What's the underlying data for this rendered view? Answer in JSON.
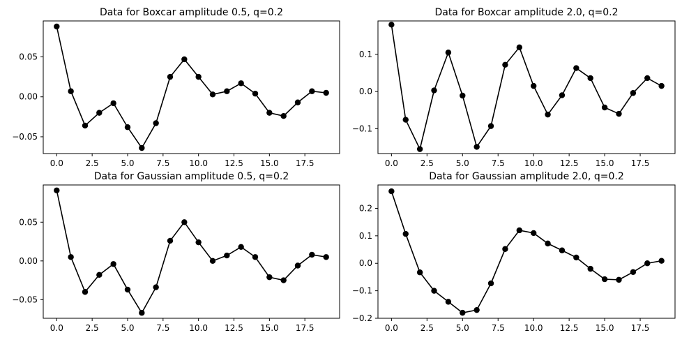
{
  "style": {
    "line_color": "#000000",
    "marker_color": "#000000",
    "marker": "circle",
    "background": "#ffffff"
  },
  "chart_data": [
    {
      "type": "line",
      "title": "Data for Boxcar amplitude 0.5, q=0.2",
      "xlabel": "",
      "ylabel": "",
      "xlim": [
        -0.95,
        19.95
      ],
      "ylim": [
        -0.071,
        0.095
      ],
      "xticks": [
        0,
        2.5,
        5,
        7.5,
        10,
        12.5,
        15,
        17.5
      ],
      "xtick_labels": [
        "0.0",
        "2.5",
        "5.0",
        "7.5",
        "10.0",
        "12.5",
        "15.0",
        "17.5"
      ],
      "yticks": [
        -0.05,
        0,
        0.05
      ],
      "ytick_labels": [
        "−0.05",
        "0.00",
        "0.05"
      ],
      "grid": false,
      "series": [
        {
          "x": [
            0,
            1,
            2,
            3,
            4,
            5,
            6,
            7,
            8,
            9,
            10,
            11,
            12,
            13,
            14,
            15,
            16,
            17,
            18,
            19
          ],
          "y": [
            0.088,
            0.007,
            -0.036,
            -0.02,
            -0.008,
            -0.038,
            -0.064,
            -0.033,
            0.025,
            0.047,
            0.025,
            0.003,
            0.007,
            0.017,
            0.004,
            -0.02,
            -0.024,
            -0.007,
            0.007,
            0.005
          ]
        }
      ]
    },
    {
      "type": "line",
      "title": "Data for Boxcar amplitude 2.0, q=0.2",
      "xlabel": "",
      "ylabel": "",
      "xlim": [
        -0.95,
        19.95
      ],
      "ylim": [
        -0.167,
        0.19
      ],
      "xticks": [
        0,
        2.5,
        5,
        7.5,
        10,
        12.5,
        15,
        17.5
      ],
      "xtick_labels": [
        "0.0",
        "2.5",
        "5.0",
        "7.5",
        "10.0",
        "12.5",
        "15.0",
        "17.5"
      ],
      "yticks": [
        -0.1,
        0,
        0.1
      ],
      "ytick_labels": [
        "−0.1",
        "0.0",
        "0.1"
      ],
      "grid": false,
      "series": [
        {
          "x": [
            0,
            1,
            2,
            3,
            4,
            5,
            6,
            7,
            8,
            9,
            10,
            11,
            12,
            13,
            14,
            15,
            16,
            17,
            18,
            19
          ],
          "y": [
            0.18,
            -0.076,
            -0.155,
            0.003,
            0.105,
            -0.011,
            -0.149,
            -0.093,
            0.072,
            0.119,
            0.015,
            -0.062,
            -0.01,
            0.063,
            0.036,
            -0.043,
            -0.06,
            -0.004,
            0.036,
            0.015
          ]
        }
      ]
    },
    {
      "type": "line",
      "title": "Data for Gaussian amplitude 0.5, q=0.2",
      "xlabel": "",
      "ylabel": "",
      "xlim": [
        -0.95,
        19.95
      ],
      "ylim": [
        -0.074,
        0.098
      ],
      "xticks": [
        0,
        2.5,
        5,
        7.5,
        10,
        12.5,
        15,
        17.5
      ],
      "xtick_labels": [
        "0.0",
        "2.5",
        "5.0",
        "7.5",
        "10.0",
        "12.5",
        "15.0",
        "17.5"
      ],
      "yticks": [
        -0.05,
        0,
        0.05
      ],
      "ytick_labels": [
        "−0.05",
        "0.00",
        "0.05"
      ],
      "grid": false,
      "series": [
        {
          "x": [
            0,
            1,
            2,
            3,
            4,
            5,
            6,
            7,
            8,
            9,
            10,
            11,
            12,
            13,
            14,
            15,
            16,
            17,
            18,
            19
          ],
          "y": [
            0.091,
            0.005,
            -0.04,
            -0.018,
            -0.004,
            -0.037,
            -0.067,
            -0.034,
            0.026,
            0.05,
            0.024,
            0.0,
            0.007,
            0.018,
            0.005,
            -0.021,
            -0.025,
            -0.006,
            0.008,
            0.005
          ]
        }
      ]
    },
    {
      "type": "line",
      "title": "Data for Gaussian amplitude 2.0, q=0.2",
      "xlabel": "",
      "ylabel": "",
      "xlim": [
        -0.95,
        19.95
      ],
      "ylim": [
        -0.2,
        0.285
      ],
      "xticks": [
        0,
        2.5,
        5,
        7.5,
        10,
        12.5,
        15,
        17.5
      ],
      "xtick_labels": [
        "0.0",
        "2.5",
        "5.0",
        "7.5",
        "10.0",
        "12.5",
        "15.0",
        "17.5"
      ],
      "yticks": [
        -0.2,
        -0.1,
        0,
        0.1,
        0.2
      ],
      "ytick_labels": [
        "−0.2",
        "−0.1",
        "0.0",
        "0.1",
        "0.2"
      ],
      "grid": false,
      "series": [
        {
          "x": [
            0,
            1,
            2,
            3,
            4,
            5,
            6,
            7,
            8,
            9,
            10,
            11,
            12,
            13,
            14,
            15,
            16,
            17,
            18,
            19
          ],
          "y": [
            0.262,
            0.107,
            -0.033,
            -0.1,
            -0.14,
            -0.18,
            -0.17,
            -0.073,
            0.052,
            0.12,
            0.11,
            0.072,
            0.047,
            0.021,
            -0.02,
            -0.058,
            -0.06,
            -0.032,
            0.0,
            0.009
          ]
        }
      ]
    }
  ]
}
